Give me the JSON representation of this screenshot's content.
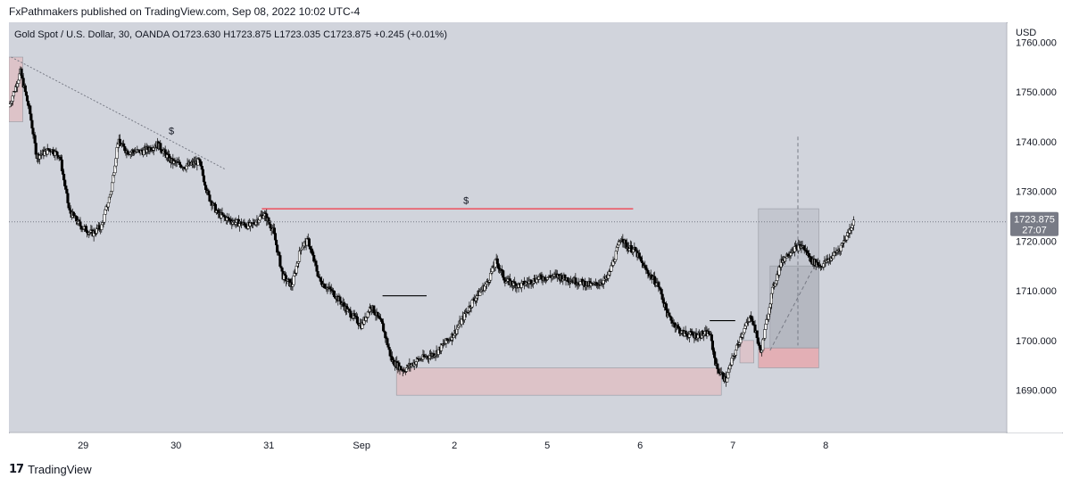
{
  "header": {
    "text": "FxPathmakers published on TradingView.com, Sep 08, 2022 10:02 UTC-4"
  },
  "footer": {
    "brand": "TradingView",
    "logo_glyph": "17"
  },
  "colors": {
    "background": "#d1d4dc",
    "candle": "#000000",
    "zone_fill": "#e8b4b8",
    "trendline": "#787b86",
    "liquidity_line": "#f23645",
    "price_tag": "#787b86"
  },
  "chart_data": {
    "type": "candlestick",
    "symbol_line": {
      "symbol": "Gold Spot / U.S. Dollar, 30, OANDA",
      "open": "O1723.630",
      "high": "H1723.875",
      "low": "L1723.035",
      "close": "C1723.875",
      "change": "+0.245 (+0.01%)"
    },
    "currency": "USD",
    "ylim": [
      1681.5,
      1764.0
    ],
    "y_ticks": [
      {
        "value": 1690,
        "label": "1690.000"
      },
      {
        "value": 1700,
        "label": "1700.000"
      },
      {
        "value": 1710,
        "label": "1710.000"
      },
      {
        "value": 1720,
        "label": "1720.000"
      },
      {
        "value": 1730,
        "label": "1730.000"
      },
      {
        "value": 1740,
        "label": "1740.000"
      },
      {
        "value": 1750,
        "label": "1750.000"
      },
      {
        "value": 1760,
        "label": "1760.000"
      }
    ],
    "xlim": [
      0,
      21.5
    ],
    "x_ticks": [
      {
        "label": "29",
        "x": 1.6
      },
      {
        "label": "30",
        "x": 3.6
      },
      {
        "label": "31",
        "x": 5.6
      },
      {
        "label": "Sep",
        "x": 7.6
      },
      {
        "label": "2",
        "x": 9.6
      },
      {
        "label": "5",
        "x": 11.6
      },
      {
        "label": "6",
        "x": 13.6
      },
      {
        "label": "7",
        "x": 15.6
      },
      {
        "label": "8",
        "x": 17.6
      }
    ],
    "last_price": {
      "value": 1723.875,
      "label": "1723.875",
      "countdown": "27:07"
    },
    "price_path": [
      [
        0.0,
        1747.0
      ],
      [
        0.25,
        1754.0
      ],
      [
        0.45,
        1746.0
      ],
      [
        0.6,
        1737.0
      ],
      [
        0.9,
        1738.5
      ],
      [
        1.1,
        1737.0
      ],
      [
        1.3,
        1726.0
      ],
      [
        1.55,
        1723.0
      ],
      [
        1.8,
        1721.5
      ],
      [
        2.0,
        1723.0
      ],
      [
        2.2,
        1730.0
      ],
      [
        2.35,
        1740.0
      ],
      [
        2.55,
        1738.0
      ],
      [
        2.9,
        1738.0
      ],
      [
        3.2,
        1739.5
      ],
      [
        3.5,
        1736.0
      ],
      [
        3.8,
        1735.0
      ],
      [
        4.1,
        1736.0
      ],
      [
        4.3,
        1729.0
      ],
      [
        4.5,
        1725.5
      ],
      [
        4.8,
        1724.0
      ],
      [
        5.2,
        1723.0
      ],
      [
        5.5,
        1725.5
      ],
      [
        5.7,
        1722.0
      ],
      [
        5.9,
        1713.0
      ],
      [
        6.1,
        1711.0
      ],
      [
        6.3,
        1719.0
      ],
      [
        6.45,
        1720.0
      ],
      [
        6.7,
        1712.0
      ],
      [
        7.0,
        1709.5
      ],
      [
        7.3,
        1706.0
      ],
      [
        7.6,
        1703.0
      ],
      [
        7.8,
        1707.0
      ],
      [
        8.05,
        1703.0
      ],
      [
        8.25,
        1696.0
      ],
      [
        8.5,
        1694.0
      ],
      [
        8.8,
        1696.0
      ],
      [
        9.2,
        1697.5
      ],
      [
        9.6,
        1701.5
      ],
      [
        10.0,
        1708.0
      ],
      [
        10.3,
        1711.5
      ],
      [
        10.5,
        1716.0
      ],
      [
        10.7,
        1712.0
      ],
      [
        11.0,
        1711.0
      ],
      [
        11.4,
        1712.5
      ],
      [
        11.8,
        1713.0
      ],
      [
        12.2,
        1712.0
      ],
      [
        12.6,
        1711.0
      ],
      [
        12.9,
        1712.5
      ],
      [
        13.1,
        1718.0
      ],
      [
        13.2,
        1721.0
      ],
      [
        13.3,
        1719.0
      ],
      [
        13.5,
        1718.0
      ],
      [
        13.7,
        1714.5
      ],
      [
        14.0,
        1711.0
      ],
      [
        14.2,
        1705.0
      ],
      [
        14.5,
        1701.5
      ],
      [
        14.8,
        1701.0
      ],
      [
        15.1,
        1701.5
      ],
      [
        15.25,
        1694.5
      ],
      [
        15.45,
        1692.0
      ],
      [
        15.6,
        1696.5
      ],
      [
        15.8,
        1701.5
      ],
      [
        16.0,
        1705.0
      ],
      [
        16.2,
        1697.5
      ],
      [
        16.45,
        1710.0
      ],
      [
        16.65,
        1716.0
      ],
      [
        16.9,
        1718.5
      ],
      [
        17.1,
        1719.0
      ],
      [
        17.3,
        1716.0
      ],
      [
        17.5,
        1715.0
      ],
      [
        17.7,
        1716.5
      ],
      [
        17.9,
        1718.5
      ],
      [
        18.05,
        1721.0
      ],
      [
        18.2,
        1723.9
      ]
    ],
    "annotations": {
      "zones": [
        {
          "x0": 0.0,
          "x1": 0.3,
          "y0": 1744.0,
          "y1": 1757.0,
          "fill": "#e8b4b8",
          "opacity": 0.55
        },
        {
          "x0": 8.35,
          "x1": 15.35,
          "y0": 1689.0,
          "y1": 1694.5,
          "fill": "#e8b4b8",
          "opacity": 0.55
        },
        {
          "x0": 15.75,
          "x1": 16.05,
          "y0": 1695.5,
          "y1": 1700.0,
          "fill": "#e8b4b8",
          "opacity": 0.5
        },
        {
          "x0": 16.15,
          "x1": 17.45,
          "y0": 1694.5,
          "y1": 1698.5,
          "fill": "#f28f95",
          "opacity": 0.55
        },
        {
          "x0": 16.15,
          "x1": 17.45,
          "y0": 1698.5,
          "y1": 1726.5,
          "fill": "#b2b5be",
          "opacity": 0.45
        },
        {
          "x0": 16.4,
          "x1": 17.45,
          "y0": 1698.5,
          "y1": 1715.0,
          "fill": "#9598a1",
          "opacity": 0.3
        }
      ],
      "trendline": {
        "x0": 0.05,
        "y0": 1757.0,
        "x1": 4.65,
        "y1": 1734.5
      },
      "liquidity_line": {
        "x0": 5.45,
        "x1": 13.45,
        "y": 1726.5
      },
      "level_lines": [
        {
          "x0": 8.05,
          "x1": 9.0,
          "y": 1709.0
        },
        {
          "x0": 15.1,
          "x1": 15.65,
          "y": 1704.0
        }
      ],
      "dashed_lines": [
        {
          "x0": 17.0,
          "y0": 1741.0,
          "x1": 17.0,
          "y1": 1699.0
        },
        {
          "x0": 16.4,
          "y0": 1698.0,
          "x1": 17.3,
          "y1": 1714.0
        }
      ],
      "markers": [
        {
          "label": "$",
          "x": 3.5,
          "y": 1741.5
        },
        {
          "label": "$",
          "x": 9.85,
          "y": 1727.5
        }
      ]
    }
  }
}
